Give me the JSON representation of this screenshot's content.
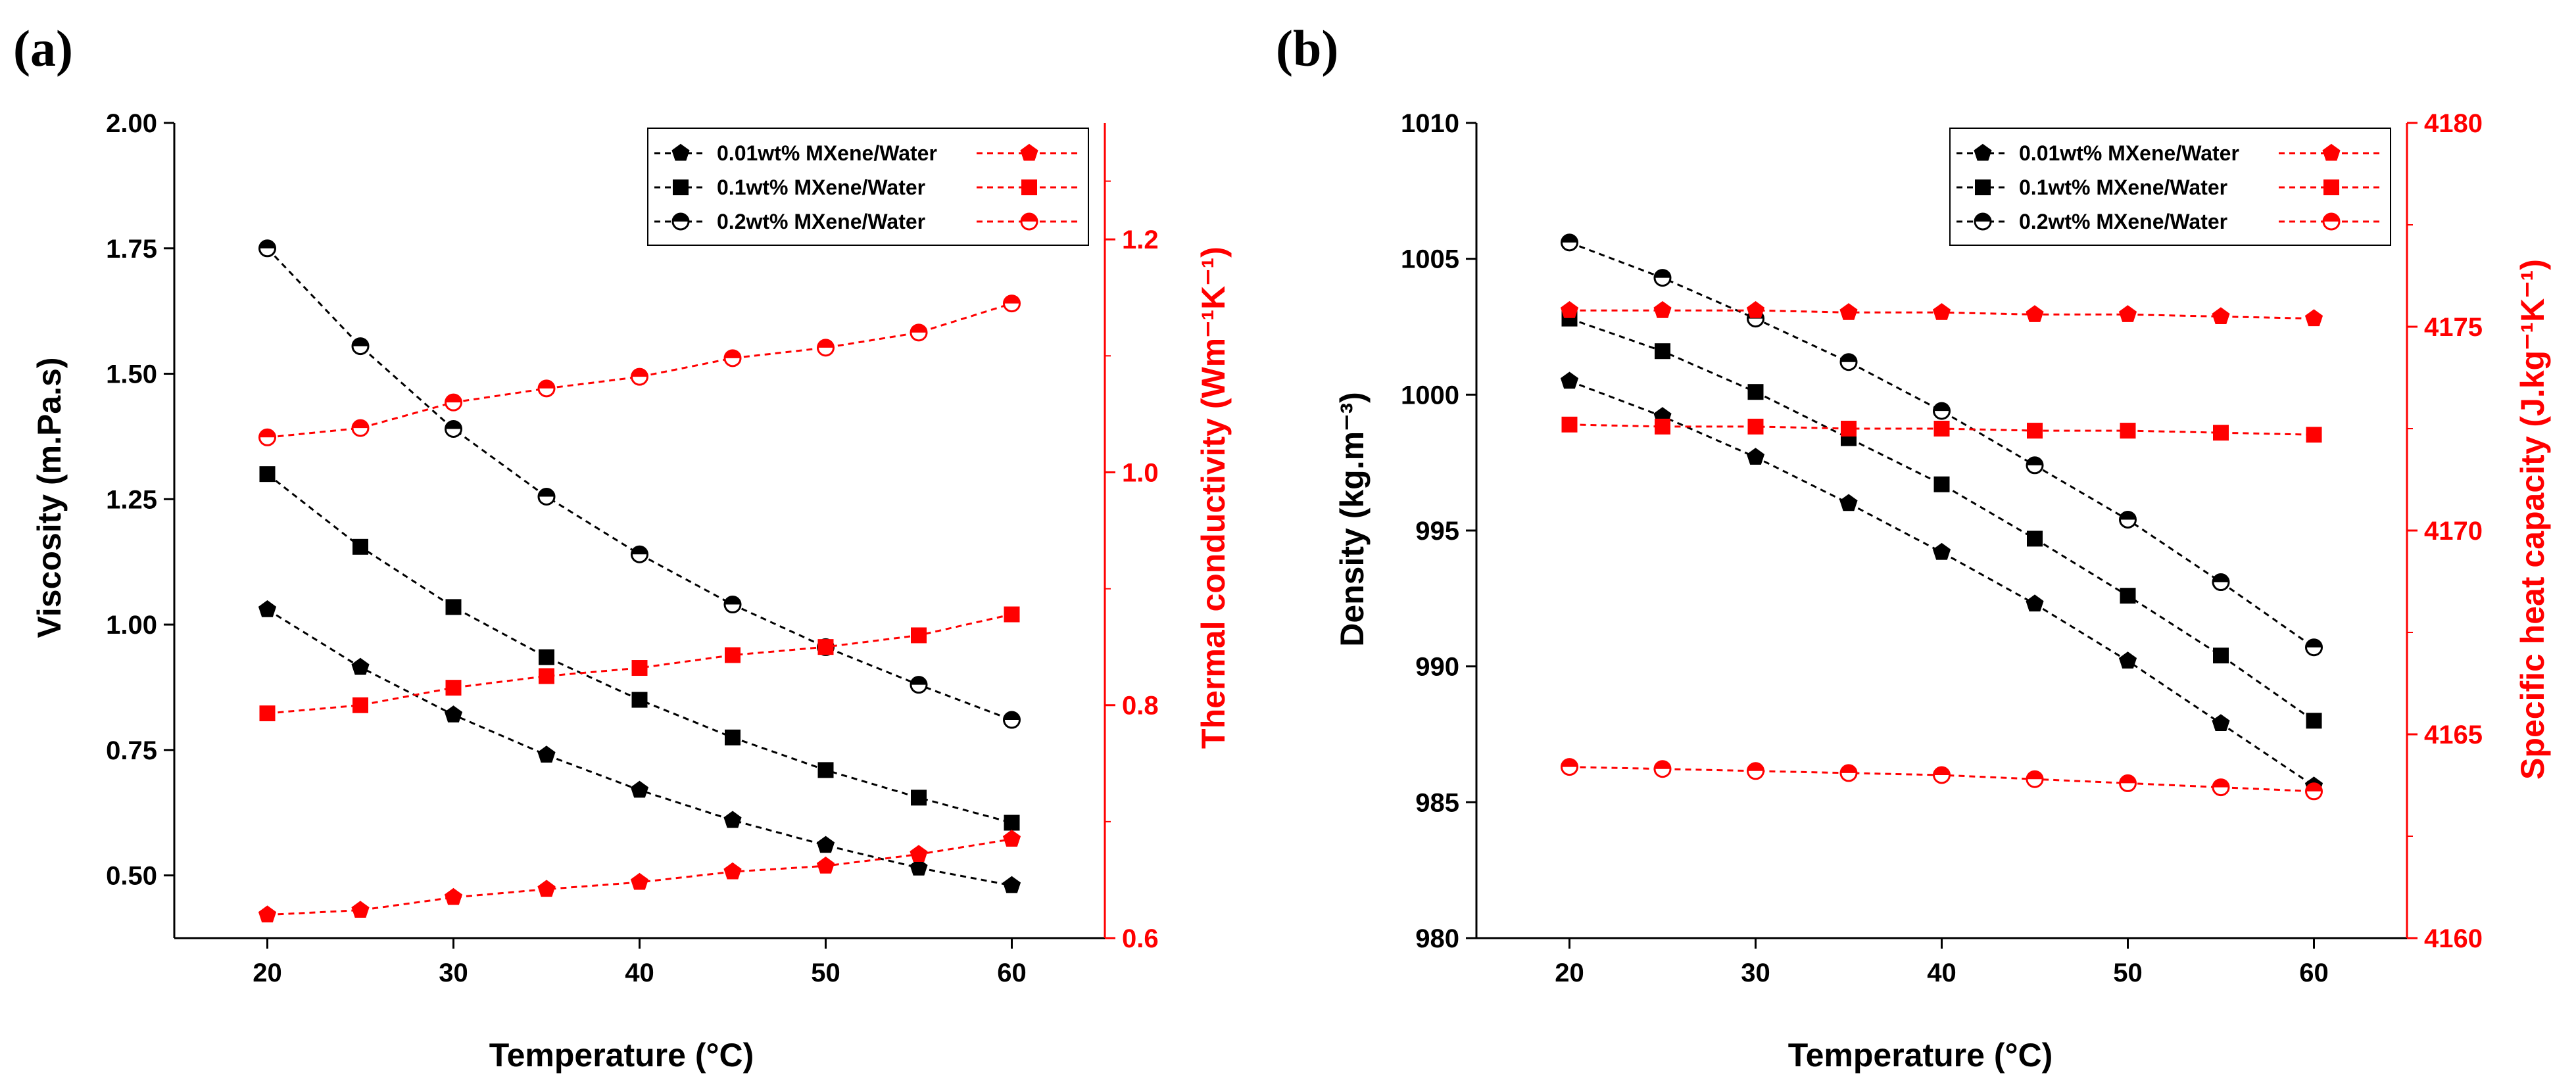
{
  "chart_data": [
    {
      "panel": "(a)",
      "type": "line",
      "xlabel": "Temperature (°C)",
      "ylabel_left": "Viscosity (m.Pa.s)",
      "ylabel_right": "Thermal conductivity (Wm⁻¹K⁻¹)",
      "xlim": [
        15,
        65
      ],
      "ylim_left": [
        0.375,
        2.0
      ],
      "ylim_right": [
        0.6,
        1.3
      ],
      "xticks": [
        20,
        30,
        40,
        50,
        60
      ],
      "yticks_left": [
        0.5,
        0.75,
        1.0,
        1.25,
        1.5,
        1.75,
        2.0
      ],
      "yticks_left_labels": [
        "0.50",
        "0.75",
        "1.00",
        "1.25",
        "1.50",
        "1.75",
        "2.00"
      ],
      "yticks_right": [
        0.6,
        0.8,
        1.0,
        1.2
      ],
      "yticks_right_labels": [
        "0.6",
        "0.8",
        "1.0",
        "1.2"
      ],
      "x": [
        20,
        25,
        30,
        35,
        40,
        45,
        50,
        55,
        60
      ],
      "legend": [
        "0.01wt% MXene/Water",
        "0.1wt% MXene/Water",
        "0.2wt% MXene/Water"
      ],
      "series": [
        {
          "name": "0.01wt% MXene/Water",
          "axis": "left",
          "color": "#000000",
          "marker": "pentagon",
          "values": [
            1.03,
            0.915,
            0.82,
            0.74,
            0.67,
            0.61,
            0.56,
            0.515,
            0.48
          ]
        },
        {
          "name": "0.1wt% MXene/Water",
          "axis": "left",
          "color": "#000000",
          "marker": "square",
          "values": [
            1.3,
            1.155,
            1.035,
            0.935,
            0.85,
            0.775,
            0.71,
            0.655,
            0.605
          ]
        },
        {
          "name": "0.2wt% MXene/Water",
          "axis": "left",
          "color": "#000000",
          "marker": "circle-half",
          "values": [
            1.75,
            1.555,
            1.39,
            1.255,
            1.14,
            1.04,
            0.955,
            0.88,
            0.81
          ]
        },
        {
          "name": "0.01wt% MXene/Water",
          "axis": "right",
          "color": "#ff0000",
          "marker": "pentagon",
          "values": [
            0.62,
            0.624,
            0.635,
            0.642,
            0.648,
            0.657,
            0.662,
            0.672,
            0.685
          ]
        },
        {
          "name": "0.1wt% MXene/Water",
          "axis": "right",
          "color": "#ff0000",
          "marker": "square",
          "values": [
            0.793,
            0.8,
            0.815,
            0.825,
            0.832,
            0.843,
            0.85,
            0.86,
            0.878
          ]
        },
        {
          "name": "0.2wt% MXene/Water",
          "axis": "right",
          "color": "#ff0000",
          "marker": "circle-half",
          "values": [
            1.03,
            1.038,
            1.06,
            1.072,
            1.082,
            1.098,
            1.107,
            1.12,
            1.145
          ]
        }
      ]
    },
    {
      "panel": "(b)",
      "type": "line",
      "xlabel": "Temperature (°C)",
      "ylabel_left": "Density (kg.m⁻³)",
      "ylabel_right": "Specific heat capacity (J.kg⁻¹K⁻¹)",
      "xlim": [
        15,
        65
      ],
      "ylim_left": [
        980,
        1010
      ],
      "ylim_right": [
        4160,
        4180
      ],
      "xticks": [
        20,
        30,
        40,
        50,
        60
      ],
      "yticks_left": [
        980,
        985,
        990,
        995,
        1000,
        1005,
        1010
      ],
      "yticks_left_labels": [
        "980",
        "985",
        "990",
        "995",
        "1000",
        "1005",
        "1010"
      ],
      "yticks_right": [
        4160,
        4165,
        4170,
        4175,
        4180
      ],
      "yticks_right_labels": [
        "4160",
        "4165",
        "4170",
        "4175",
        "4180"
      ],
      "x": [
        20,
        25,
        30,
        35,
        40,
        45,
        50,
        55,
        60
      ],
      "legend": [
        "0.01wt% MXene/Water",
        "0.1wt% MXene/Water",
        "0.2wt% MXene/Water"
      ],
      "series": [
        {
          "name": "0.01wt% MXene/Water",
          "axis": "left",
          "color": "#000000",
          "marker": "pentagon",
          "values": [
            1000.5,
            999.2,
            997.7,
            996.0,
            994.2,
            992.3,
            990.2,
            987.9,
            985.6
          ]
        },
        {
          "name": "0.1wt% MXene/Water",
          "axis": "left",
          "color": "#000000",
          "marker": "square",
          "values": [
            1002.8,
            1001.6,
            1000.1,
            998.4,
            996.7,
            994.7,
            992.6,
            990.4,
            988.0
          ]
        },
        {
          "name": "0.2wt% MXene/Water",
          "axis": "left",
          "color": "#000000",
          "marker": "circle-half",
          "values": [
            1005.6,
            1004.3,
            1002.8,
            1001.2,
            999.4,
            997.4,
            995.4,
            993.1,
            990.7
          ]
        },
        {
          "name": "0.01wt% MXene/Water",
          "axis": "right",
          "color": "#ff0000",
          "marker": "pentagon",
          "values": [
            4175.4,
            4175.4,
            4175.4,
            4175.35,
            4175.35,
            4175.3,
            4175.3,
            4175.25,
            4175.2
          ]
        },
        {
          "name": "0.1wt% MXene/Water",
          "axis": "right",
          "color": "#ff0000",
          "marker": "square",
          "values": [
            4172.6,
            4172.55,
            4172.55,
            4172.5,
            4172.5,
            4172.45,
            4172.45,
            4172.4,
            4172.35
          ]
        },
        {
          "name": "0.2wt% MXene/Water",
          "axis": "right",
          "color": "#ff0000",
          "marker": "circle-half",
          "values": [
            4164.2,
            4164.15,
            4164.1,
            4164.05,
            4164.0,
            4163.9,
            4163.8,
            4163.7,
            4163.6
          ]
        }
      ]
    }
  ]
}
